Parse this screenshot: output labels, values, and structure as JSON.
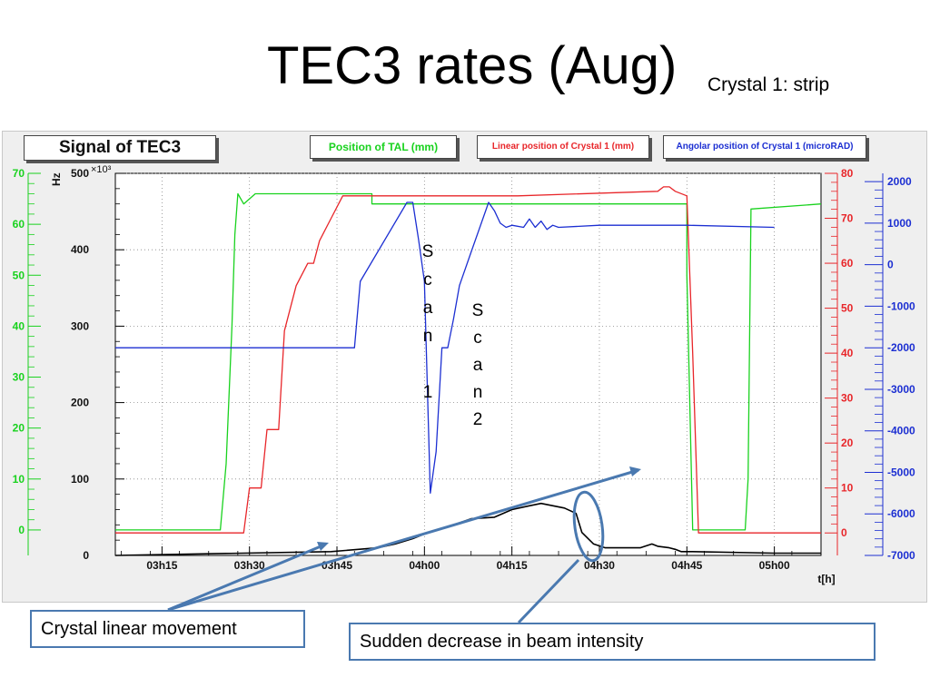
{
  "slide": {
    "title": "TEC3 rates (Aug)",
    "subtitle": "Crystal 1: strip"
  },
  "annotations": {
    "scan1": [
      "S",
      "c",
      "a",
      "n",
      "",
      "1"
    ],
    "scan2": [
      "S",
      "c",
      "a",
      "n",
      "2"
    ],
    "callout_linear": "Crystal linear movement",
    "callout_decrease": "Sudden decrease in beam intensity"
  },
  "colors": {
    "tec3": "#000000",
    "tal": "#19d21e",
    "linear": "#e8262a",
    "angular": "#1c2fd2",
    "arrow": "#4a79b0"
  },
  "chart_data": {
    "type": "line",
    "title": "Signal of TEC3",
    "xlabel": "t[h]",
    "x_ticks": [
      "03h15",
      "03h30",
      "03h45",
      "04h00",
      "04h15",
      "04h30",
      "04h45",
      "05h00"
    ],
    "x_range": [
      "03h07",
      "05h08"
    ],
    "y_axes": {
      "hz": {
        "label": "Hz",
        "multiplier": "×10³",
        "range": [
          0,
          500
        ],
        "ticks": [
          0,
          100,
          200,
          300,
          400,
          500
        ]
      },
      "tal": {
        "label": "Position of TAL (mm)",
        "range": [
          -5,
          70
        ],
        "ticks": [
          0,
          10,
          20,
          30,
          40,
          50,
          60,
          70
        ]
      },
      "linear": {
        "label": "Linear position of Crystal 1 (mm)",
        "range": [
          -5,
          80
        ],
        "ticks": [
          0,
          10,
          20,
          30,
          40,
          50,
          60,
          70,
          80
        ]
      },
      "angular": {
        "label": "Angolar position of Crystal 1 (microRAD)",
        "range": [
          -7000,
          2200
        ],
        "ticks": [
          -7000,
          -6000,
          -5000,
          -4000,
          -3000,
          -2000,
          -1000,
          0,
          1000,
          2000
        ]
      }
    },
    "series": [
      {
        "name": "Position of TAL (mm)",
        "axis": "tal",
        "color": "#19d21e",
        "x": [
          "03h07",
          "03h25",
          "03h26",
          "03h27",
          "03h27.5",
          "03h28",
          "03h29",
          "03h31",
          "03h51",
          "03h51",
          "04h45",
          "04h45",
          "04h46",
          "04h55",
          "04h55",
          "04h55.5",
          "04h56",
          "05h08"
        ],
        "y": [
          0,
          0,
          13,
          40,
          58,
          66,
          64,
          66,
          66,
          64,
          64,
          50,
          0,
          0,
          0,
          10,
          63,
          64
        ]
      },
      {
        "name": "Linear position of Crystal 1 (mm)",
        "axis": "linear",
        "color": "#e8262a",
        "x": [
          "03h07",
          "03h29",
          "03h30",
          "03h32",
          "03h33",
          "03h35",
          "03h36",
          "03h38",
          "03h40",
          "03h41",
          "03h42",
          "03h44",
          "03h46",
          "04h16",
          "04h40",
          "04h41",
          "04h42",
          "04h43",
          "04h45",
          "04h46",
          "04h47",
          "05h08"
        ],
        "y": [
          0,
          0,
          10,
          10,
          23,
          23,
          45,
          55,
          60,
          60,
          65,
          70,
          75,
          75,
          76,
          77,
          77,
          76,
          75,
          40,
          0,
          0
        ]
      },
      {
        "name": "Angolar position of Crystal 1 (microRAD)",
        "axis": "angular",
        "color": "#1c2fd2",
        "x": [
          "03h07",
          "03h48",
          "03h49",
          "03h57",
          "03h58",
          "03h59",
          "04h00",
          "04h01",
          "04h02",
          "04h03",
          "04h04",
          "04h05",
          "04h06",
          "04h08",
          "04h11",
          "04h12",
          "04h13",
          "04h14",
          "04h15",
          "04h17",
          "04h18",
          "04h19",
          "04h20",
          "04h21",
          "04h22",
          "04h23",
          "04h30",
          "04h45",
          "05h00"
        ],
        "y": [
          -2000,
          -2000,
          -400,
          1500,
          1500,
          600,
          -400,
          -5500,
          -4500,
          -2000,
          -2000,
          -1300,
          -500,
          300,
          1500,
          1300,
          1000,
          900,
          950,
          900,
          1100,
          900,
          1050,
          850,
          950,
          900,
          950,
          950,
          900
        ]
      },
      {
        "name": "Signal of TEC3",
        "axis": "hz",
        "color": "#000000",
        "x": [
          "03h07",
          "03h44",
          "03h52",
          "03h55",
          "03h58",
          "04h00",
          "04h03",
          "04h05",
          "04h08",
          "04h12",
          "04h15",
          "04h18",
          "04h20",
          "04h24",
          "04h26",
          "04h27",
          "04h29",
          "04h31",
          "04h34",
          "04h37",
          "04h39",
          "04h40",
          "04h42",
          "04h43",
          "04h44",
          "04h46",
          "05h00",
          "05h08"
        ],
        "y": [
          0,
          5,
          10,
          15,
          22,
          28,
          35,
          40,
          48,
          50,
          60,
          65,
          68,
          62,
          55,
          30,
          15,
          10,
          10,
          10,
          15,
          12,
          10,
          8,
          5,
          5,
          3,
          3
        ]
      }
    ],
    "annotations": [
      "Scan 1",
      "Scan 2"
    ]
  }
}
